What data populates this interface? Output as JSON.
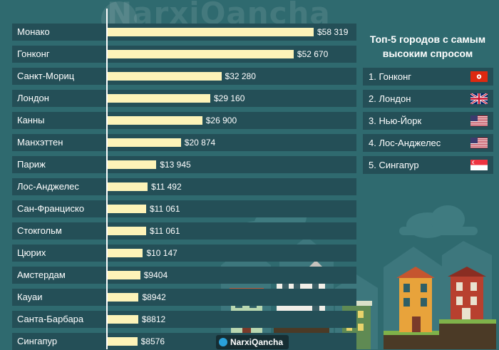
{
  "brand": {
    "watermark": "NarxiQancha",
    "footer": "NarxiQancha"
  },
  "chart_data": {
    "type": "bar",
    "orientation": "horizontal",
    "categories": [
      "Монако",
      "Гонконг",
      "Санкт-Мориц",
      "Лондон",
      "Канны",
      "Манхэттен",
      "Париж",
      "Лос-Анджелес",
      "Сан-Франциско",
      "Стокгольм",
      "Цюрих",
      "Амстердам",
      "Кауаи",
      "Санта-Барбара",
      "Сингапур"
    ],
    "values": [
      58319,
      52670,
      32280,
      29160,
      26900,
      20874,
      13945,
      11492,
      11061,
      11061,
      10147,
      9404,
      8942,
      8812,
      8576
    ],
    "value_labels": [
      "$58 319",
      "$52 670",
      "$32 280",
      "$29 160",
      "$26 900",
      "$20 874",
      "$13 945",
      "$11 492",
      "$11 061",
      "$11 061",
      "$10 147",
      "$9404",
      "$8942",
      "$8812",
      "$8576"
    ],
    "xlim": [
      0,
      65000
    ],
    "grid": false,
    "colors": {
      "bar": "#fdf3b8",
      "row_band": "#244f57",
      "background": "#2f6a6f"
    }
  },
  "top5": {
    "title_line1": "Топ-5 городов с самым",
    "title_line2": "высоким спросом",
    "items": [
      {
        "label": "1. Гонконг",
        "flag": "hong-kong-flag"
      },
      {
        "label": "2. Лондон",
        "flag": "uk-flag"
      },
      {
        "label": "3. Нью-Йорк",
        "flag": "usa-flag"
      },
      {
        "label": "4. Лос-Анджелес",
        "flag": "usa-flag"
      },
      {
        "label": "5. Сингапур",
        "flag": "singapore-flag"
      }
    ]
  }
}
